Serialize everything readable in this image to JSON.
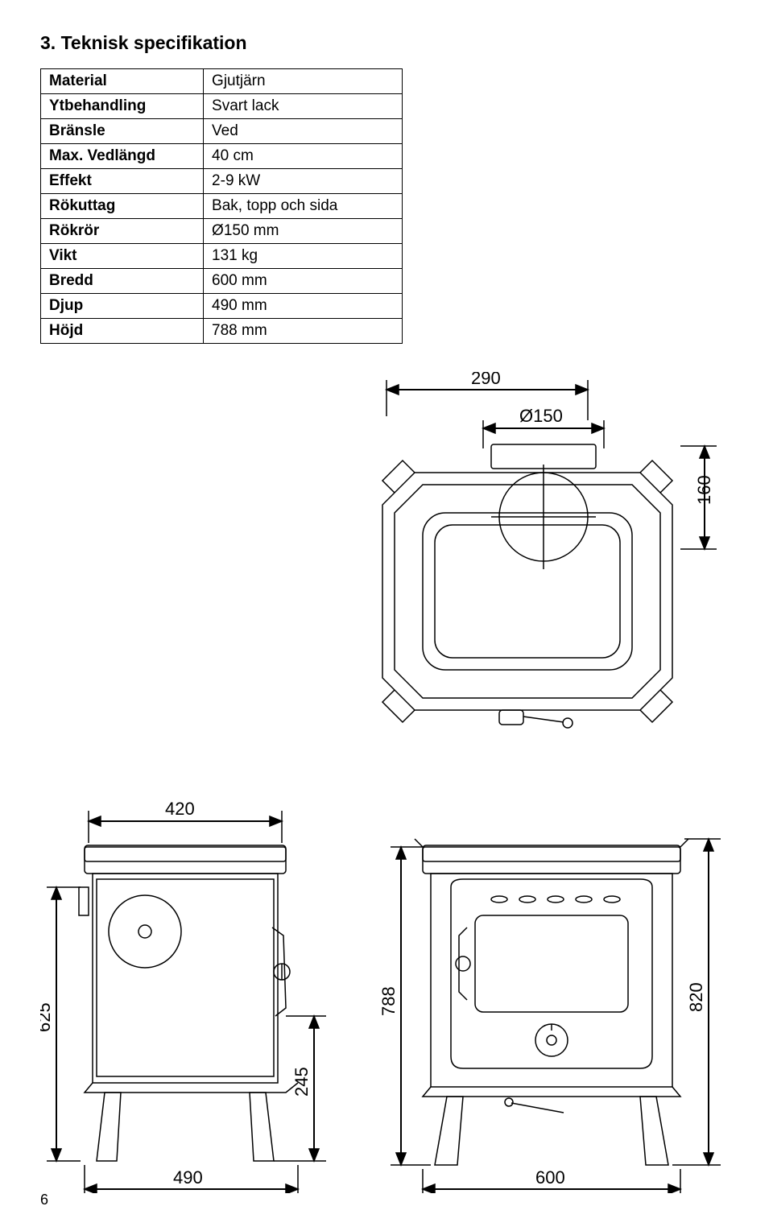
{
  "heading": "3. Teknisk specifikation",
  "spec": {
    "rows": [
      {
        "label": "Material",
        "value": "Gjutjärn"
      },
      {
        "label": "Ytbehandling",
        "value": "Svart lack"
      },
      {
        "label": "Bränsle",
        "value": "Ved"
      },
      {
        "label": "Max. Vedlängd",
        "value": "40 cm"
      },
      {
        "label": "Effekt",
        "value": "2-9 kW"
      },
      {
        "label": "Rökuttag",
        "value": "Bak, topp och sida"
      },
      {
        "label": "Rökrör",
        "value": "Ø150 mm"
      },
      {
        "label": "Vikt",
        "value": "131 kg"
      },
      {
        "label": "Bredd",
        "value": "600 mm"
      },
      {
        "label": "Djup",
        "value": "490 mm"
      },
      {
        "label": "Höjd",
        "value": "788 mm"
      }
    ]
  },
  "dims": {
    "top_width": "290",
    "top_dia": "Ø150",
    "top_height": "160",
    "side_width_top": "420",
    "side_height": "625",
    "side_handle_h": "245",
    "side_depth": "490",
    "front_height": "788",
    "front_right_h": "820",
    "front_width": "600"
  },
  "page": "6",
  "style": {
    "stroke": "#000000",
    "stroke_width": 1.5,
    "fill": "none",
    "font_size": 22
  }
}
